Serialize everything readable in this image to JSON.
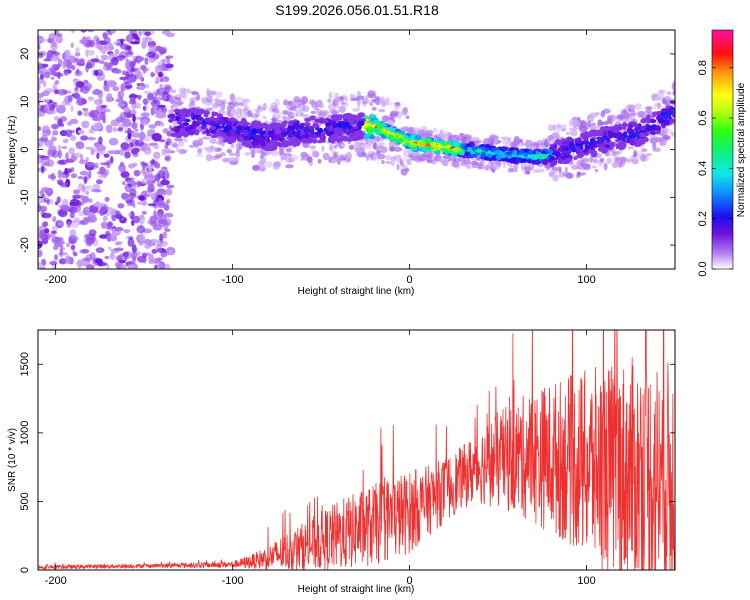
{
  "figure": {
    "title": "S199.2026.056.01.51.R18"
  },
  "chart_data": [
    {
      "type": "heatmap",
      "title": "S199.2026.056.01.51.R18",
      "xlabel": "Height of straight line (km)",
      "ylabel": "Frequency (Hz)",
      "xlim": [
        -210,
        150
      ],
      "ylim": [
        -25,
        25
      ],
      "xticks": [
        -200,
        -100,
        0,
        100
      ],
      "yticks": [
        -20,
        -10,
        0,
        10,
        20
      ],
      "ridge": {
        "description_points_x": [
          -135,
          -120,
          -100,
          -80,
          -60,
          -40,
          -20,
          0,
          20,
          40,
          60,
          75,
          90,
          110,
          130,
          150
        ],
        "frequency_hz": [
          5.5,
          5.8,
          4.0,
          2.5,
          4.0,
          4.5,
          5.0,
          1.5,
          0.5,
          -0.5,
          -1.3,
          -1.5,
          0.0,
          2.0,
          3.5,
          8.0
        ]
      },
      "colorbar": {
        "label": "Normalized spectral amplitude",
        "range": [
          0.0,
          0.95
        ],
        "ticks": [
          "0.0",
          "0.2",
          "0.4",
          "0.6",
          "0.8"
        ],
        "tick_values": [
          0.0,
          0.2,
          0.4,
          0.6,
          0.8
        ]
      }
    },
    {
      "type": "line",
      "xlabel": "Height of straight line (km)",
      "ylabel": "SNR (10 * v/v)",
      "xlim": [
        -210,
        150
      ],
      "ylim": [
        0,
        1750
      ],
      "xticks": [
        -200,
        -100,
        0,
        100
      ],
      "yticks": [
        0,
        500,
        1000,
        1500
      ],
      "color": "#ef3030",
      "series": [
        {
          "name": "SNR",
          "x": [
            -210,
            -180,
            -150,
            -120,
            -100,
            -90,
            -80,
            -70,
            -60,
            -50,
            -40,
            -30,
            -20,
            -10,
            0,
            10,
            20,
            30,
            40,
            50,
            60,
            70,
            80,
            90,
            100,
            110,
            120,
            130,
            140,
            150
          ],
          "y": [
            20,
            25,
            30,
            35,
            40,
            60,
            90,
            130,
            170,
            210,
            250,
            290,
            330,
            380,
            420,
            500,
            580,
            680,
            760,
            800,
            820,
            830,
            820,
            800,
            760,
            740,
            720,
            700,
            680,
            660
          ],
          "peak_spread": [
            15,
            15,
            15,
            20,
            25,
            50,
            90,
            140,
            180,
            220,
            260,
            280,
            300,
            320,
            300,
            260,
            240,
            230,
            280,
            360,
            420,
            500,
            560,
            620,
            700,
            760,
            820,
            860,
            880,
            860
          ]
        }
      ]
    }
  ]
}
